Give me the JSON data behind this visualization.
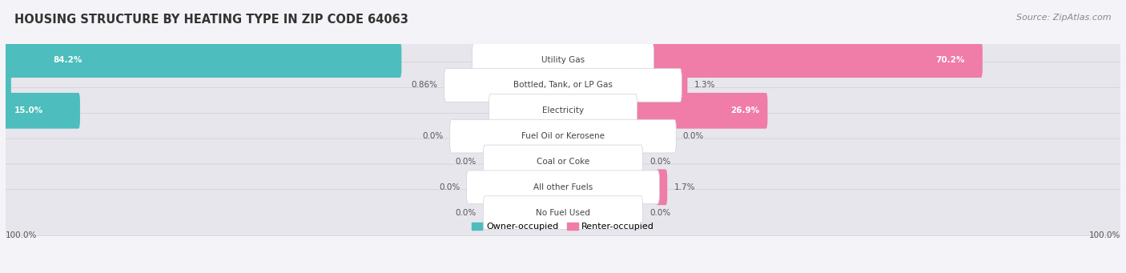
{
  "title": "Housing Structure by Heating Type in Zip Code 64063",
  "title_display": "HOUSING STRUCTURE BY HEATING TYPE IN ZIP CODE 64063",
  "source": "Source: ZipAtlas.com",
  "categories": [
    "Utility Gas",
    "Bottled, Tank, or LP Gas",
    "Electricity",
    "Fuel Oil or Kerosene",
    "Coal or Coke",
    "All other Fuels",
    "No Fuel Used"
  ],
  "owner_values": [
    84.2,
    0.86,
    15.0,
    0.0,
    0.0,
    0.0,
    0.0
  ],
  "renter_values": [
    70.2,
    1.3,
    26.9,
    0.0,
    0.0,
    1.7,
    0.0
  ],
  "owner_labels": [
    "84.2%",
    "0.86%",
    "15.0%",
    "0.0%",
    "0.0%",
    "0.0%",
    "0.0%"
  ],
  "renter_labels": [
    "70.2%",
    "1.3%",
    "26.9%",
    "0.0%",
    "0.0%",
    "1.7%",
    "0.0%"
  ],
  "owner_color": "#4dbdbd",
  "renter_color": "#f07ca8",
  "owner_label_light": "#5ecece",
  "renter_label_light": "#f899bf",
  "owner_legend": "Owner-occupied",
  "renter_legend": "Renter-occupied",
  "max_value": 100.0,
  "fig_bg": "#f4f4f8",
  "row_bg": "#e6e6ec",
  "row_alt_bg": "#ededf2",
  "title_color": "#333333",
  "source_color": "#888888",
  "label_color": "#555555",
  "white": "#ffffff",
  "title_fontsize": 10.5,
  "source_fontsize": 8,
  "cat_fontsize": 7.5,
  "val_fontsize": 7.5,
  "legend_fontsize": 8,
  "axis_tick_fontsize": 7.5,
  "left_axis_label": "100.0%",
  "right_axis_label": "100.0%"
}
